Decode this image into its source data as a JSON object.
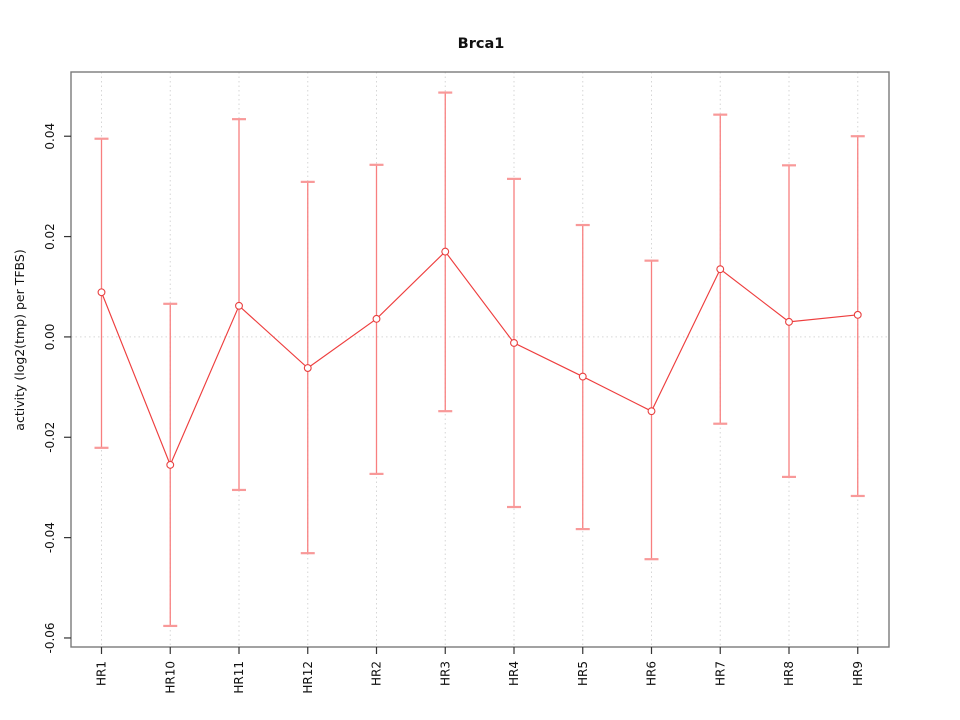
{
  "window": {
    "background": "#ffffff"
  },
  "chart_data": {
    "type": "line",
    "title": "Brca1",
    "ylabel": "activity (log2(tmp) per TFBS)",
    "xlabel": "",
    "categories": [
      "HR1",
      "HR10",
      "HR11",
      "HR12",
      "HR2",
      "HR3",
      "HR4",
      "HR5",
      "HR6",
      "HR7",
      "HR8",
      "HR9"
    ],
    "series": [
      {
        "name": "activity",
        "marker": "open-circle",
        "error_bars": true,
        "centers": [
          0.0089,
          -0.0255,
          0.0062,
          -0.0062,
          0.0036,
          0.017,
          -0.0012,
          -0.0079,
          -0.0148,
          0.0135,
          0.003,
          0.0044
        ],
        "lower": [
          -0.0221,
          -0.0576,
          -0.0305,
          -0.0431,
          -0.0273,
          -0.0148,
          -0.0339,
          -0.0383,
          -0.0443,
          -0.0173,
          -0.0279,
          -0.0317
        ],
        "upper": [
          0.0395,
          0.0066,
          0.0434,
          0.0309,
          0.0343,
          0.0487,
          0.0315,
          0.0223,
          0.0152,
          0.0443,
          0.0342,
          0.04
        ]
      }
    ],
    "yticks": {
      "values": [
        0.04,
        0.02,
        0,
        -0.02,
        -0.04,
        -0.06
      ],
      "labels": [
        "0.04",
        "0.02",
        "0.00",
        "-0.02",
        "-0.04",
        "-0.06"
      ]
    },
    "ylim": [
      -0.0618,
      0.0528
    ],
    "grid": {
      "vertical": "dotted line at every category",
      "horizontal": "dotted line at y = 0 only"
    },
    "legend": "none",
    "axis_label_rotation": "90deg (labels read bottom-to-top)",
    "colors": {
      "series_line": "#ee3e3e",
      "error_bar": "#f87f7f",
      "error_cap": "#f89999",
      "marker_stroke": "#e84040",
      "marker_fill": "#ffffff",
      "grid": "#d6d6d6",
      "box": "#7a7a7a",
      "tick": "#333333",
      "text": "#111111",
      "background": "#ffffff"
    }
  }
}
